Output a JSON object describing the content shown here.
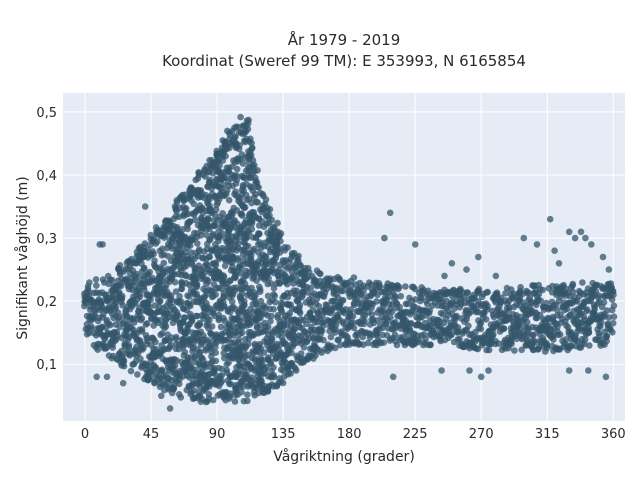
{
  "chart_data": {
    "type": "scatter",
    "title_line1": "År 1979 - 2019",
    "title_line2": "Koordinat (Sweref 99 TM): E 353993, N 6165854",
    "xlabel": "Vågriktning (grader)",
    "ylabel": "Signifikant våghöjd (m)",
    "xlim": [
      -15,
      368
    ],
    "ylim": [
      0.01,
      0.53
    ],
    "x_ticks": [
      0,
      45,
      90,
      135,
      180,
      225,
      270,
      315,
      360
    ],
    "x_tick_labels": [
      "0",
      "45",
      "90",
      "135",
      "180",
      "225",
      "270",
      "315",
      "360"
    ],
    "y_ticks": [
      0.1,
      0.2,
      0.3,
      0.4,
      0.5
    ],
    "y_tick_labels": [
      "0,1",
      "0,2",
      "0,3",
      "0,4",
      "0,5"
    ],
    "grid": true,
    "marker_color": "#34566b",
    "bg_color": "#e5ecf6",
    "envelope": [
      {
        "x": 0,
        "low": 0.14,
        "high": 0.23
      },
      {
        "x": 15,
        "low": 0.11,
        "high": 0.24
      },
      {
        "x": 30,
        "low": 0.09,
        "high": 0.27
      },
      {
        "x": 45,
        "low": 0.07,
        "high": 0.31
      },
      {
        "x": 60,
        "low": 0.05,
        "high": 0.35
      },
      {
        "x": 75,
        "low": 0.04,
        "high": 0.4
      },
      {
        "x": 90,
        "low": 0.04,
        "high": 0.44
      },
      {
        "x": 100,
        "low": 0.04,
        "high": 0.48
      },
      {
        "x": 110,
        "low": 0.04,
        "high": 0.5
      },
      {
        "x": 120,
        "low": 0.05,
        "high": 0.38
      },
      {
        "x": 135,
        "low": 0.07,
        "high": 0.3
      },
      {
        "x": 150,
        "low": 0.1,
        "high": 0.26
      },
      {
        "x": 165,
        "low": 0.12,
        "high": 0.24
      },
      {
        "x": 180,
        "low": 0.13,
        "high": 0.24
      },
      {
        "x": 200,
        "low": 0.13,
        "high": 0.23
      },
      {
        "x": 240,
        "low": 0.13,
        "high": 0.22
      },
      {
        "x": 280,
        "low": 0.12,
        "high": 0.22
      },
      {
        "x": 320,
        "low": 0.12,
        "high": 0.23
      },
      {
        "x": 360,
        "low": 0.13,
        "high": 0.23
      }
    ],
    "outliers": [
      {
        "x": 41,
        "y": 0.35
      },
      {
        "x": 208,
        "y": 0.34
      },
      {
        "x": 204,
        "y": 0.3
      },
      {
        "x": 225,
        "y": 0.29
      },
      {
        "x": 245,
        "y": 0.24
      },
      {
        "x": 250,
        "y": 0.26
      },
      {
        "x": 260,
        "y": 0.25
      },
      {
        "x": 268,
        "y": 0.27
      },
      {
        "x": 280,
        "y": 0.24
      },
      {
        "x": 299,
        "y": 0.3
      },
      {
        "x": 308,
        "y": 0.29
      },
      {
        "x": 317,
        "y": 0.33
      },
      {
        "x": 320,
        "y": 0.28
      },
      {
        "x": 323,
        "y": 0.26
      },
      {
        "x": 330,
        "y": 0.31
      },
      {
        "x": 334,
        "y": 0.3
      },
      {
        "x": 338,
        "y": 0.31
      },
      {
        "x": 341,
        "y": 0.3
      },
      {
        "x": 345,
        "y": 0.29
      },
      {
        "x": 353,
        "y": 0.27
      },
      {
        "x": 357,
        "y": 0.25
      },
      {
        "x": 10,
        "y": 0.29
      },
      {
        "x": 12,
        "y": 0.29
      },
      {
        "x": 8,
        "y": 0.08
      },
      {
        "x": 15,
        "y": 0.08
      },
      {
        "x": 26,
        "y": 0.07
      },
      {
        "x": 52,
        "y": 0.05
      },
      {
        "x": 58,
        "y": 0.03
      },
      {
        "x": 210,
        "y": 0.08
      },
      {
        "x": 243,
        "y": 0.09
      },
      {
        "x": 262,
        "y": 0.09
      },
      {
        "x": 270,
        "y": 0.08
      },
      {
        "x": 275,
        "y": 0.09
      },
      {
        "x": 330,
        "y": 0.09
      },
      {
        "x": 343,
        "y": 0.09
      },
      {
        "x": 355,
        "y": 0.08
      }
    ]
  }
}
